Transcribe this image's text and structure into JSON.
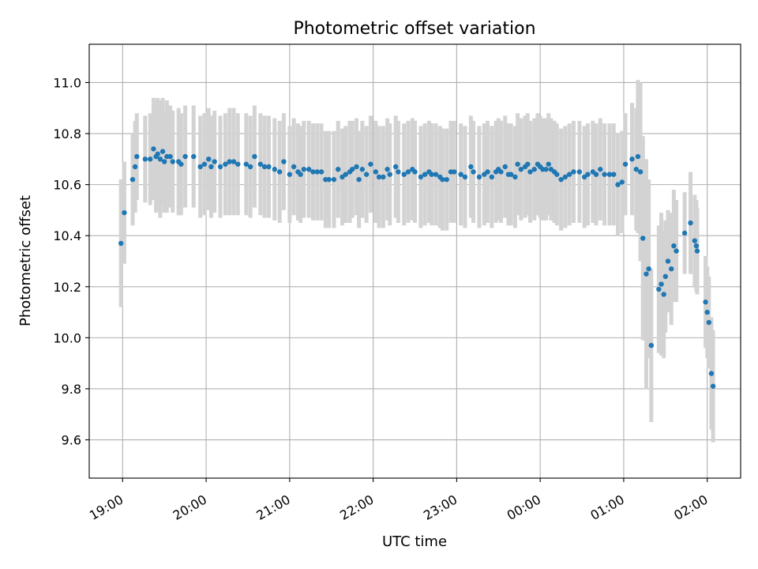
{
  "chart_data": {
    "type": "scatter",
    "title": "Photometric offset variation",
    "xlabel": "UTC time",
    "ylabel": "Photometric offset",
    "x_unit": "hours (UTC, continuing past midnight)",
    "xlim": [
      18.6,
      26.4
    ],
    "ylim": [
      9.45,
      11.15
    ],
    "x_ticks": [
      {
        "value": 19,
        "label": "19:00"
      },
      {
        "value": 20,
        "label": "20:00"
      },
      {
        "value": 21,
        "label": "21:00"
      },
      {
        "value": 22,
        "label": "22:00"
      },
      {
        "value": 23,
        "label": "23:00"
      },
      {
        "value": 24,
        "label": "00:00"
      },
      {
        "value": 25,
        "label": "01:00"
      },
      {
        "value": 26,
        "label": "02:00"
      }
    ],
    "y_ticks": [
      {
        "value": 9.6,
        "label": "9.6"
      },
      {
        "value": 9.8,
        "label": "9.8"
      },
      {
        "value": 10.0,
        "label": "10.0"
      },
      {
        "value": 10.2,
        "label": "10.2"
      },
      {
        "value": 10.4,
        "label": "10.4"
      },
      {
        "value": 10.6,
        "label": "10.6"
      },
      {
        "value": 10.8,
        "label": "10.8"
      },
      {
        "value": 11.0,
        "label": "11.0"
      }
    ],
    "grid": true,
    "point_color": "#1f77b4",
    "errorbar_color": "#d3d3d3",
    "series": [
      {
        "x": [
          18.98,
          19.02,
          19.12,
          19.15,
          19.17,
          19.27,
          19.33,
          19.37,
          19.4,
          19.42,
          19.45,
          19.48,
          19.5,
          19.53,
          19.57,
          19.6,
          19.67,
          19.7,
          19.75,
          19.85,
          19.93,
          19.98,
          20.03,
          20.06,
          20.1,
          20.17,
          20.23,
          20.28,
          20.33,
          20.38,
          20.48,
          20.53,
          20.58,
          20.65,
          20.7,
          20.75,
          20.82,
          20.88,
          20.93,
          21.0,
          21.05,
          21.1,
          21.13,
          21.17,
          21.23,
          21.28,
          21.33,
          21.38,
          21.43,
          21.47,
          21.53,
          21.58,
          21.63,
          21.67,
          21.72,
          21.75,
          21.8,
          21.83,
          21.87,
          21.92,
          21.97,
          22.03,
          22.07,
          22.12,
          22.17,
          22.2,
          22.27,
          22.3,
          22.37,
          22.42,
          22.47,
          22.5,
          22.57,
          22.62,
          22.67,
          22.7,
          22.75,
          22.8,
          22.83,
          22.88,
          22.93,
          22.97,
          23.05,
          23.1,
          23.17,
          23.2,
          23.27,
          23.33,
          23.37,
          23.42,
          23.47,
          23.5,
          23.53,
          23.58,
          23.62,
          23.65,
          23.7,
          23.73,
          23.77,
          23.82,
          23.85,
          23.88,
          23.93,
          23.97,
          24.0,
          24.03,
          24.07,
          24.1,
          24.13,
          24.17,
          24.2,
          24.25,
          24.3,
          24.35,
          24.4,
          24.47,
          24.53,
          24.57,
          24.63,
          24.67,
          24.72,
          24.77,
          24.83,
          24.88,
          24.93,
          24.98,
          25.02,
          25.1,
          25.15,
          25.17,
          25.2,
          25.23,
          25.27,
          25.3,
          25.33,
          25.42,
          25.45,
          25.48,
          25.5,
          25.53,
          25.57,
          25.6,
          25.63,
          25.73,
          25.8,
          25.85,
          25.87,
          25.88,
          25.98,
          26.0,
          26.02,
          26.05,
          26.07
        ],
        "y": [
          10.37,
          10.49,
          10.62,
          10.67,
          10.71,
          10.7,
          10.7,
          10.74,
          10.71,
          10.72,
          10.7,
          10.73,
          10.69,
          10.71,
          10.71,
          10.69,
          10.69,
          10.68,
          10.71,
          10.71,
          10.67,
          10.68,
          10.7,
          10.67,
          10.69,
          10.67,
          10.68,
          10.69,
          10.69,
          10.68,
          10.68,
          10.67,
          10.71,
          10.68,
          10.67,
          10.67,
          10.66,
          10.65,
          10.69,
          10.64,
          10.67,
          10.65,
          10.64,
          10.66,
          10.66,
          10.65,
          10.65,
          10.65,
          10.62,
          10.62,
          10.62,
          10.66,
          10.63,
          10.64,
          10.65,
          10.66,
          10.67,
          10.62,
          10.66,
          10.64,
          10.68,
          10.65,
          10.63,
          10.63,
          10.66,
          10.64,
          10.67,
          10.65,
          10.64,
          10.65,
          10.66,
          10.65,
          10.63,
          10.64,
          10.65,
          10.64,
          10.64,
          10.63,
          10.62,
          10.62,
          10.65,
          10.65,
          10.64,
          10.63,
          10.67,
          10.65,
          10.63,
          10.64,
          10.65,
          10.63,
          10.65,
          10.66,
          10.65,
          10.67,
          10.64,
          10.64,
          10.63,
          10.68,
          10.66,
          10.67,
          10.68,
          10.65,
          10.66,
          10.68,
          10.67,
          10.66,
          10.66,
          10.68,
          10.66,
          10.65,
          10.64,
          10.62,
          10.63,
          10.64,
          10.65,
          10.65,
          10.63,
          10.64,
          10.65,
          10.64,
          10.66,
          10.64,
          10.64,
          10.64,
          10.6,
          10.61,
          10.68,
          10.7,
          10.66,
          10.71,
          10.65,
          10.39,
          10.25,
          10.27,
          9.97,
          10.19,
          10.21,
          10.17,
          10.24,
          10.3,
          10.27,
          10.36,
          10.34,
          10.41,
          10.45,
          10.38,
          10.36,
          10.34,
          10.14,
          10.1,
          10.06,
          9.86,
          9.81
        ],
        "err": [
          0.25,
          0.2,
          0.18,
          0.18,
          0.17,
          0.17,
          0.18,
          0.2,
          0.22,
          0.22,
          0.23,
          0.21,
          0.2,
          0.22,
          0.2,
          0.2,
          0.21,
          0.2,
          0.2,
          0.2,
          0.2,
          0.2,
          0.2,
          0.2,
          0.2,
          0.2,
          0.2,
          0.21,
          0.21,
          0.2,
          0.2,
          0.2,
          0.2,
          0.2,
          0.2,
          0.2,
          0.2,
          0.2,
          0.19,
          0.19,
          0.19,
          0.19,
          0.19,
          0.19,
          0.19,
          0.19,
          0.19,
          0.19,
          0.19,
          0.19,
          0.19,
          0.19,
          0.19,
          0.19,
          0.2,
          0.19,
          0.19,
          0.19,
          0.19,
          0.19,
          0.19,
          0.2,
          0.2,
          0.2,
          0.2,
          0.2,
          0.2,
          0.2,
          0.2,
          0.2,
          0.2,
          0.2,
          0.2,
          0.2,
          0.2,
          0.2,
          0.2,
          0.2,
          0.2,
          0.2,
          0.2,
          0.2,
          0.2,
          0.2,
          0.2,
          0.2,
          0.2,
          0.2,
          0.2,
          0.2,
          0.2,
          0.2,
          0.2,
          0.2,
          0.2,
          0.2,
          0.2,
          0.2,
          0.2,
          0.2,
          0.2,
          0.2,
          0.2,
          0.2,
          0.2,
          0.2,
          0.2,
          0.2,
          0.2,
          0.2,
          0.2,
          0.2,
          0.2,
          0.2,
          0.2,
          0.2,
          0.2,
          0.2,
          0.2,
          0.2,
          0.2,
          0.2,
          0.2,
          0.2,
          0.2,
          0.2,
          0.2,
          0.22,
          0.24,
          0.3,
          0.35,
          0.4,
          0.45,
          0.35,
          0.3,
          0.25,
          0.28,
          0.25,
          0.22,
          0.2,
          0.22,
          0.22,
          0.2,
          0.16,
          0.2,
          0.18,
          0.18,
          0.17,
          0.18,
          0.18,
          0.18,
          0.22,
          0.22
        ]
      }
    ]
  }
}
